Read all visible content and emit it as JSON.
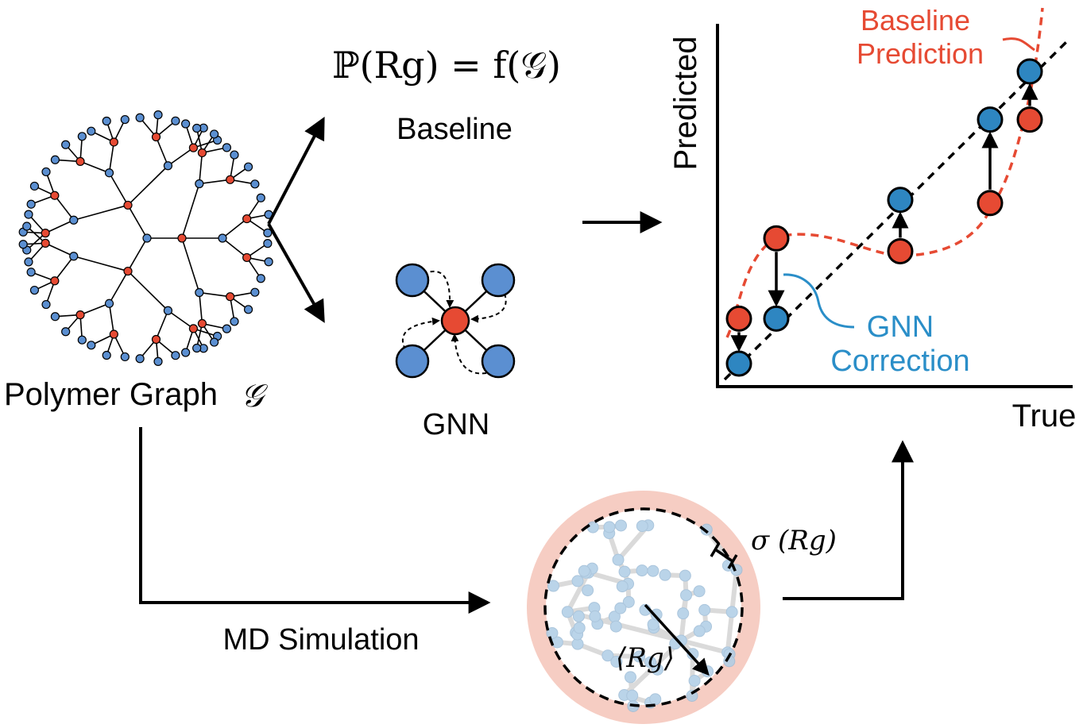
{
  "colors": {
    "red": "#e64a33",
    "blue": "#5b8fd1",
    "plot_blue": "#2e86c1",
    "callout_blue": "#2a8ec8",
    "black": "#000000",
    "md_ring": "#f4c4b8",
    "md_bead": "#aecde6",
    "md_bond": "#d4d4d4"
  },
  "labels": {
    "polymer_graph": "Polymer Graph",
    "polymer_graph_symbol": "𝒢",
    "baseline_formula": "ℙ(Rg) = f(𝒢)",
    "baseline": "Baseline",
    "gnn": "GNN",
    "md_simulation": "MD Simulation",
    "sigma_label": "σ (Rg)",
    "mean_rg_label": "⟨Rg⟩"
  },
  "chart_data": {
    "type": "scatter",
    "xlabel": "True",
    "ylabel": "Predicted",
    "annotations": {
      "baseline": [
        "Baseline",
        "Prediction"
      ],
      "gnn": [
        "GNN",
        "Correction"
      ]
    },
    "points": [
      {
        "baseline": 0.18,
        "corrected": 0.04
      },
      {
        "baseline": 0.43,
        "corrected": 0.18
      },
      {
        "baseline": 0.39,
        "corrected": 0.55
      },
      {
        "baseline": 0.54,
        "corrected": 0.8
      },
      {
        "baseline": 0.8,
        "corrected": 0.95
      }
    ]
  }
}
